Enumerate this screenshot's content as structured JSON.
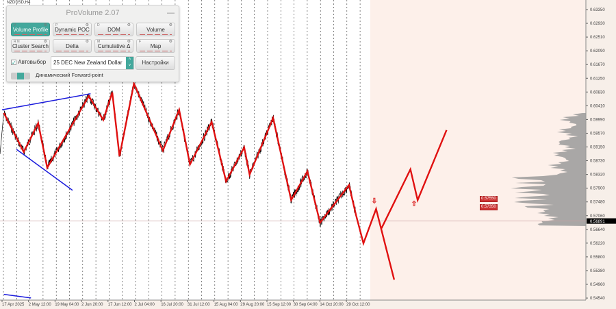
{
  "symbol": "NZDUSD,H4",
  "panel": {
    "title": "ProVolume 2.07",
    "minimize": "—",
    "buttons": [
      {
        "key": "V",
        "label": "Volume Profile",
        "active": true
      },
      {
        "key": "P",
        "label": "Dynamic POC",
        "active": false
      },
      {
        "key": "D",
        "label": "DOM",
        "active": false
      },
      {
        "key": "",
        "label": "Volume",
        "active": false
      },
      {
        "key": "R N",
        "label": "Cluster Search",
        "active": false
      },
      {
        "key": "",
        "label": "Delta",
        "active": false
      },
      {
        "key": "M",
        "label": "Cumulative Δ",
        "active": false
      },
      {
        "key": "F",
        "label": "Map",
        "active": false
      }
    ],
    "autoselect_label": "Автовыбор",
    "autoselect_checked": true,
    "instrument_value": "25 DEC New Zealand Dollar",
    "settings_label": "Настройки",
    "forward_point_label": "Динамический Forward-point"
  },
  "chart_data": {
    "type": "line",
    "y_ticks": [
      "0.63350",
      "0.62930",
      "0.62510",
      "0.62090",
      "0.61670",
      "0.61250",
      "0.60830",
      "0.60410",
      "0.59990",
      "0.59570",
      "0.59150",
      "0.58730",
      "0.58320",
      "0.57900",
      "0.57480",
      "0.57060",
      "0.56640",
      "0.56220",
      "0.55800",
      "0.55380",
      "0.54960",
      "0.54540"
    ],
    "ylim": [
      0.5454,
      0.6335
    ],
    "x_ticks": [
      "17 Apr 2025",
      "2 May 12:00",
      "19 May 04:00",
      "2 Jun 20:00",
      "17 Jun 12:00",
      "2 Jul 04:00",
      "16 Jul 20:00",
      "31 Jul 12:00",
      "15 Aug 04:00",
      "29 Aug 20:00",
      "15 Sep 12:00",
      "30 Sep 04:00",
      "14 Oct 20:00",
      "29 Oct 12:00"
    ],
    "current_price": "0.56891",
    "level_labels": [
      "0.57550",
      "0.57350"
    ],
    "colors": {
      "zigzag": "#e01010",
      "trend": "#1a1adc",
      "price": "#000000",
      "profile": "#9a9a9a",
      "future_bg": "#fdf0ea"
    },
    "zigzag": [
      [
        "2025-04-18",
        0.6019
      ],
      [
        "2025-04-29",
        0.59
      ],
      [
        "2025-05-07",
        0.5988
      ],
      [
        "2025-05-12",
        0.5852
      ],
      [
        "2025-06-04",
        0.6071
      ],
      [
        "2025-06-12",
        0.5998
      ],
      [
        "2025-06-17",
        0.6082
      ],
      [
        "2025-06-21",
        0.5887
      ],
      [
        "2025-06-29",
        0.6109
      ],
      [
        "2025-07-15",
        0.5904
      ],
      [
        "2025-07-24",
        0.6029
      ],
      [
        "2025-07-30",
        0.5862
      ],
      [
        "2025-08-11",
        0.5992
      ],
      [
        "2025-08-19",
        0.581
      ],
      [
        "2025-08-29",
        0.5914
      ],
      [
        "2025-09-01",
        0.5831
      ],
      [
        "2025-09-14",
        0.6004
      ],
      [
        "2025-09-24",
        0.5753
      ],
      [
        "2025-10-03",
        0.5841
      ],
      [
        "2025-10-10",
        0.5684
      ],
      [
        "2025-10-26",
        0.5799
      ],
      [
        "2025-10-30",
        0.5705
      ]
    ],
    "forecast_1": [
      [
        "2025-10-30",
        0.5705
      ],
      [
        "2025-11-03",
        0.5621
      ],
      [
        "2025-11-10",
        0.5726
      ],
      [
        "2025-11-20",
        0.551
      ]
    ],
    "forecast_2": [
      [
        "2025-11-13",
        0.5667
      ],
      [
        "2025-11-29",
        0.5847
      ],
      [
        "2025-12-03",
        0.5753
      ],
      [
        "2025-12-19",
        0.5967
      ]
    ],
    "trendlines": [
      [
        [
          "2025-04-17",
          0.6029
        ],
        [
          "2025-06-05",
          0.6078
        ]
      ],
      [
        [
          "2025-04-25",
          0.5908
        ],
        [
          "2025-05-26",
          0.5783
        ]
      ],
      [
        [
          "2025-04-18",
          0.5465
        ],
        [
          "2025-05-03",
          0.5454
        ]
      ]
    ],
    "arrows": [
      {
        "date": "2025-11-09",
        "price": 0.5744,
        "dir": "down"
      },
      {
        "date": "2025-12-01",
        "price": 0.5735,
        "dir": "up"
      }
    ]
  }
}
